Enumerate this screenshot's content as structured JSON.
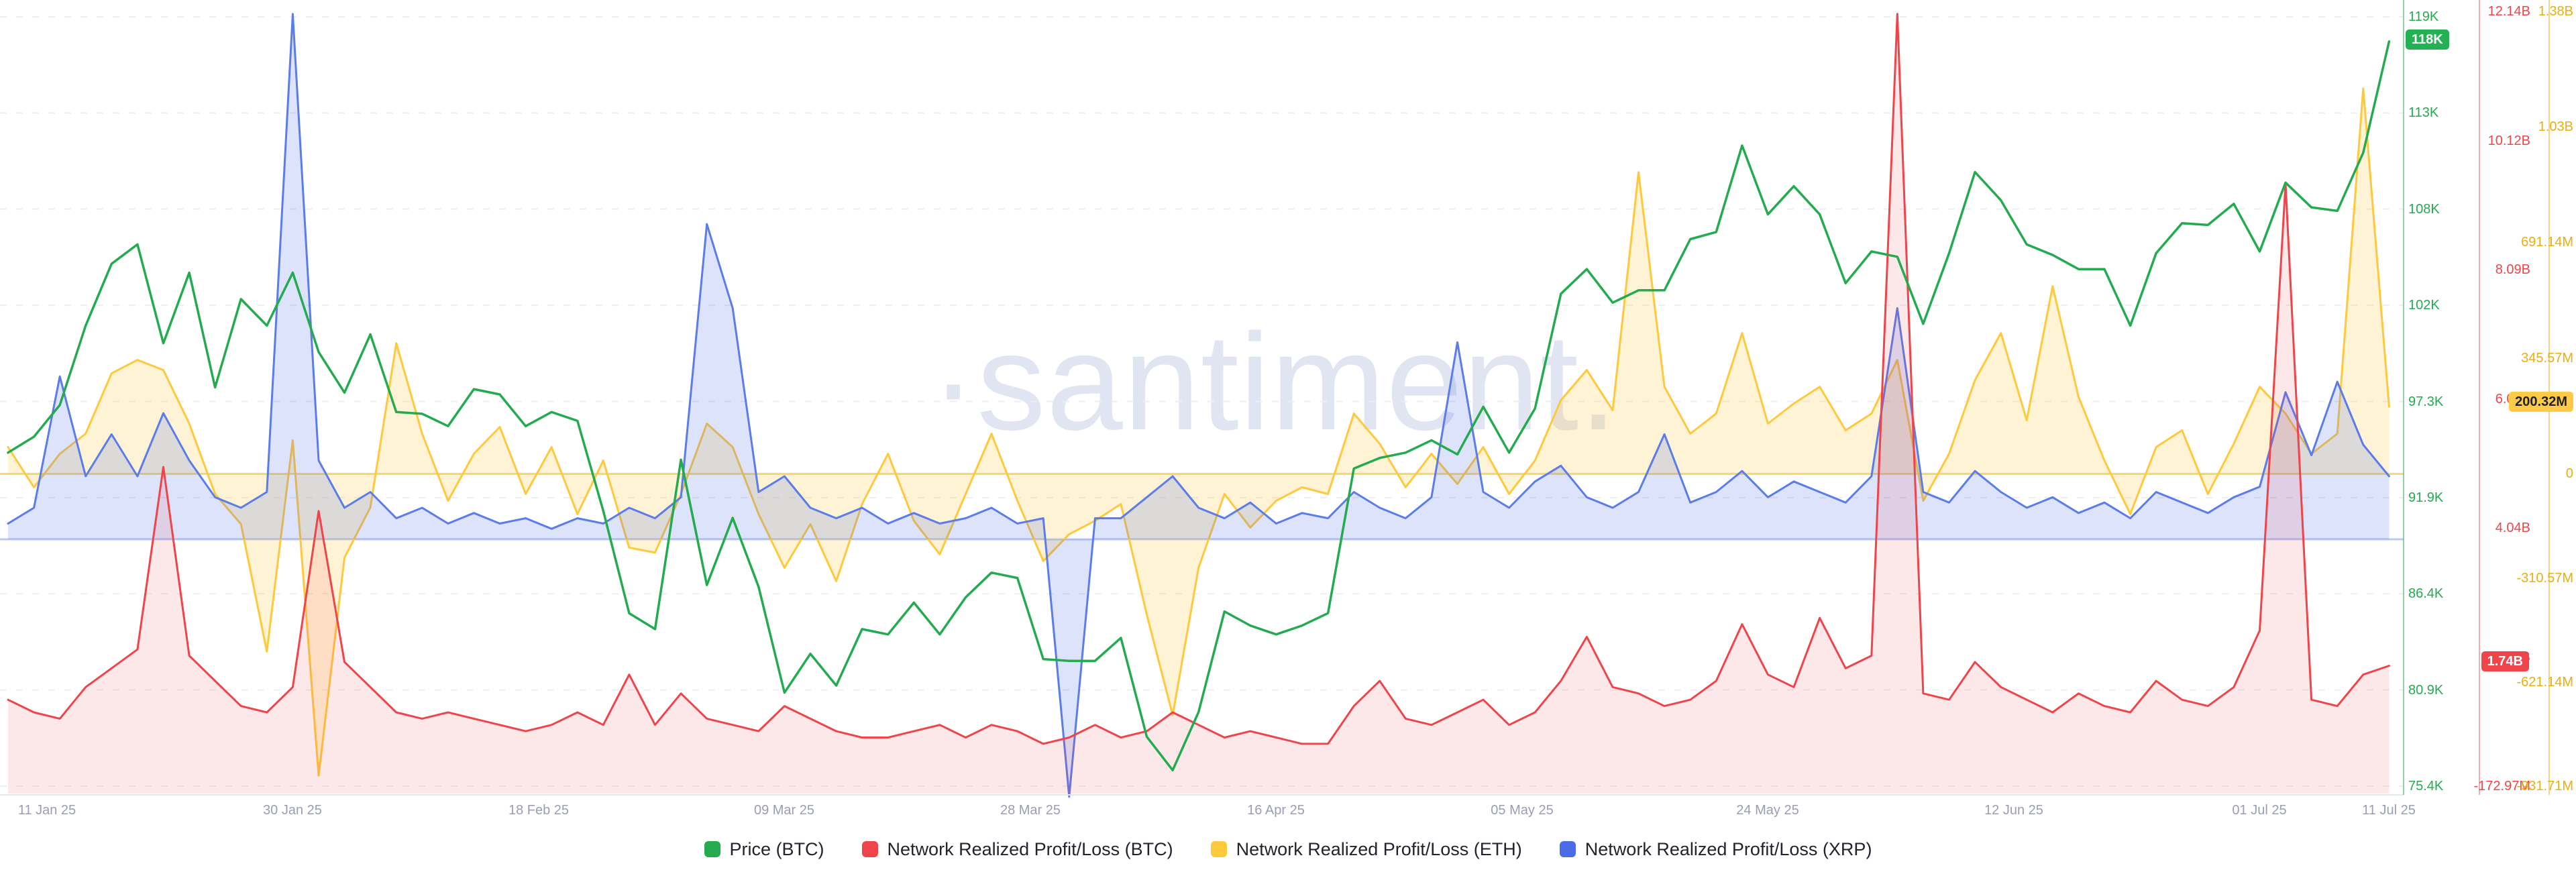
{
  "watermark": "·santiment.",
  "legend": {
    "items": [
      {
        "label": "Price (BTC)",
        "color": "#24ab4f"
      },
      {
        "label": "Network Realized Profit/Loss (BTC)",
        "color": "#ef454a"
      },
      {
        "label": "Network Realized Profit/Loss (ETH)",
        "color": "#ffc93e"
      },
      {
        "label": "Network Realized Profit/Loss (XRP)",
        "color": "#4c6be8"
      }
    ]
  },
  "axes": {
    "price": {
      "title": "Price (BTC)",
      "color": "#24ab4f",
      "badge": "118K",
      "unit": "K USD",
      "min": 75.4,
      "max": 119,
      "ticks": [
        {
          "label": "119K",
          "v": 119
        },
        {
          "label": "113K",
          "v": 113.55
        },
        {
          "label": "108K",
          "v": 108.1
        },
        {
          "label": "102K",
          "v": 102.65
        },
        {
          "label": "97.3K",
          "v": 97.2
        },
        {
          "label": "91.9K",
          "v": 91.75
        },
        {
          "label": "86.4K",
          "v": 86.3
        },
        {
          "label": "80.9K",
          "v": 80.85
        },
        {
          "label": "75.4K",
          "v": 75.4
        }
      ]
    },
    "npl_btc": {
      "title": "Network Realized Profit/Loss (BTC)",
      "color": "#ef454a",
      "badge": "1.74B",
      "unit": "B USD",
      "min": -0.17297,
      "max": 12.14,
      "ticks": [
        {
          "label": "12.14B",
          "v": 12.14
        },
        {
          "label": "10.12B",
          "v": 10.0878
        },
        {
          "label": "8.09B",
          "v": 8.0356
        },
        {
          "label": "6.07B",
          "v": 5.9834
        },
        {
          "label": "4.04B",
          "v": 3.9312
        },
        {
          "label": "2.02B",
          "v": 1.879
        },
        {
          "label": "-172.97M",
          "v": -0.17297
        }
      ]
    },
    "npl_eth": {
      "title": "Network Realized Profit/Loss (ETH)",
      "color": "#e8af10",
      "badge": "200.32M",
      "unit": "M USD",
      "min": -931.71,
      "max": 1380,
      "ticks": [
        {
          "label": "1.38B",
          "v": 1380
        },
        {
          "label": "1.03B",
          "v": 1036.71
        },
        {
          "label": "691.14M",
          "v": 691.14
        },
        {
          "label": "345.57M",
          "v": 345.57
        },
        {
          "label": "0",
          "v": 0
        },
        {
          "label": "-310.57M",
          "v": -310.57
        },
        {
          "label": "-621.14M",
          "v": -621.14
        },
        {
          "label": "-931.71M",
          "v": -931.71
        }
      ]
    },
    "npl_xrp": {
      "title": "Network Realized Profit/Loss (XRP)",
      "color": "#5b7ceb",
      "axis_visible": false,
      "unit": "relative (axis hidden)",
      "min": -470,
      "max": 1005
    }
  },
  "x_axis": {
    "tick_labels": [
      "11 Jan 25",
      "30 Jan 25",
      "18 Feb 25",
      "09 Mar 25",
      "28 Mar 25",
      "16 Apr 25",
      "05 May 25",
      "24 May 25",
      "12 Jun 25",
      "01 Jul 25",
      "11 Jul 25"
    ],
    "tick_day_offsets": [
      3,
      22,
      41,
      60,
      79,
      98,
      117,
      136,
      155,
      174,
      184
    ]
  },
  "chart_data": {
    "type": "line",
    "x_start": "2025-01-08",
    "x_end": "2025-07-11",
    "x_step_days": 2,
    "grid": "horizontal-dashed",
    "legend_position": "bottom-center",
    "series": [
      {
        "name": "Price (BTC)",
        "axis": "price",
        "unit": "K USD",
        "color": "#24ab4f",
        "style": "line",
        "values": [
          94.3,
          95.2,
          97,
          101.5,
          105,
          106.1,
          100.5,
          104.5,
          98,
          103,
          101.5,
          104.5,
          100,
          97.7,
          101,
          96.6,
          96.5,
          95.8,
          97.9,
          97.6,
          95.8,
          96.6,
          96.1,
          91,
          85.2,
          84.3,
          93.9,
          86.8,
          90.6,
          86.7,
          80.7,
          82.9,
          81.1,
          84.3,
          84,
          85.8,
          84,
          86.1,
          87.5,
          87.2,
          82.6,
          82.5,
          82.5,
          83.8,
          78.2,
          76.3,
          79.6,
          85.3,
          84.5,
          84,
          84.5,
          85.2,
          93.4,
          94,
          94.3,
          95,
          94.2,
          96.9,
          94.3,
          96.8,
          103.3,
          104.7,
          102.8,
          103.5,
          103.5,
          106.4,
          106.8,
          111.7,
          107.8,
          109.4,
          107.8,
          103.9,
          105.7,
          105.4,
          101.6,
          105.6,
          110.2,
          108.6,
          106.1,
          105.5,
          104.7,
          104.7,
          101.5,
          105.6,
          107.3,
          107.2,
          108.4,
          105.7,
          109.6,
          108.2,
          108,
          111.3,
          117.6
        ]
      },
      {
        "name": "Network Realized Profit/Loss (BTC)",
        "axis": "npl_btc",
        "unit": "B USD",
        "color": "#ef454a",
        "style": "area",
        "baseline": "bottom",
        "values": [
          1.2,
          1,
          0.9,
          1.4,
          1.7,
          2,
          4.9,
          1.9,
          1.5,
          1.1,
          1,
          1.4,
          4.2,
          1.8,
          1.4,
          1,
          0.9,
          1,
          0.9,
          0.8,
          0.7,
          0.8,
          1,
          0.8,
          1.6,
          0.8,
          1.3,
          0.9,
          0.8,
          0.7,
          1.1,
          0.9,
          0.7,
          0.6,
          0.6,
          0.7,
          0.8,
          0.6,
          0.8,
          0.7,
          0.5,
          0.6,
          0.8,
          0.6,
          0.7,
          1,
          0.8,
          0.6,
          0.7,
          0.6,
          0.5,
          0.5,
          1.1,
          1.5,
          0.9,
          0.8,
          1,
          1.2,
          0.8,
          1,
          1.5,
          2.2,
          1.4,
          1.3,
          1.1,
          1.2,
          1.5,
          2.4,
          1.6,
          1.4,
          2.5,
          1.7,
          1.9,
          12.1,
          1.3,
          1.2,
          1.8,
          1.4,
          1.2,
          1,
          1.3,
          1.1,
          1,
          1.5,
          1.2,
          1.1,
          1.4,
          2.3,
          9.4,
          1.2,
          1.1,
          1.6,
          1.74
        ]
      },
      {
        "name": "Network Realized Profit/Loss (ETH)",
        "axis": "npl_eth",
        "unit": "M USD",
        "color": "#ffc93e",
        "style": "area",
        "baseline": "zero",
        "values": [
          80,
          -40,
          60,
          120,
          300,
          340,
          310,
          150,
          -60,
          -150,
          -530,
          100,
          -900,
          -250,
          -100,
          390,
          120,
          -80,
          60,
          140,
          -60,
          80,
          -120,
          40,
          -220,
          -235,
          -60,
          150,
          80,
          -120,
          -280,
          -150,
          -320,
          -90,
          60,
          -140,
          -240,
          -60,
          120,
          -80,
          -260,
          -180,
          -140,
          -90,
          -420,
          -720,
          -280,
          -60,
          -160,
          -80,
          -40,
          -60,
          180,
          90,
          -40,
          60,
          -30,
          80,
          -60,
          40,
          220,
          310,
          190,
          900,
          260,
          120,
          180,
          420,
          150,
          210,
          260,
          130,
          180,
          340,
          -80,
          60,
          280,
          420,
          160,
          560,
          230,
          40,
          -120,
          80,
          130,
          -60,
          90,
          260,
          180,
          60,
          120,
          1150,
          200.32
        ]
      },
      {
        "name": "Network Realized Profit/Loss (XRP)",
        "axis": "npl_xrp",
        "unit": "relative (axis hidden)",
        "color": "#5b7ceb",
        "style": "area",
        "baseline": "zero",
        "values": [
          30,
          60,
          310,
          120,
          200,
          120,
          240,
          150,
          80,
          60,
          90,
          1000,
          150,
          60,
          90,
          40,
          60,
          30,
          50,
          30,
          40,
          20,
          40,
          30,
          60,
          40,
          80,
          600,
          440,
          90,
          120,
          60,
          40,
          60,
          30,
          50,
          30,
          40,
          60,
          30,
          40,
          -490,
          40,
          40,
          80,
          120,
          60,
          40,
          70,
          30,
          50,
          40,
          90,
          60,
          40,
          80,
          375,
          90,
          60,
          110,
          140,
          80,
          60,
          90,
          200,
          70,
          90,
          130,
          80,
          110,
          90,
          70,
          120,
          440,
          90,
          70,
          130,
          90,
          60,
          80,
          50,
          70,
          40,
          90,
          70,
          50,
          80,
          100,
          280,
          160,
          300,
          180,
          120
        ]
      }
    ]
  }
}
